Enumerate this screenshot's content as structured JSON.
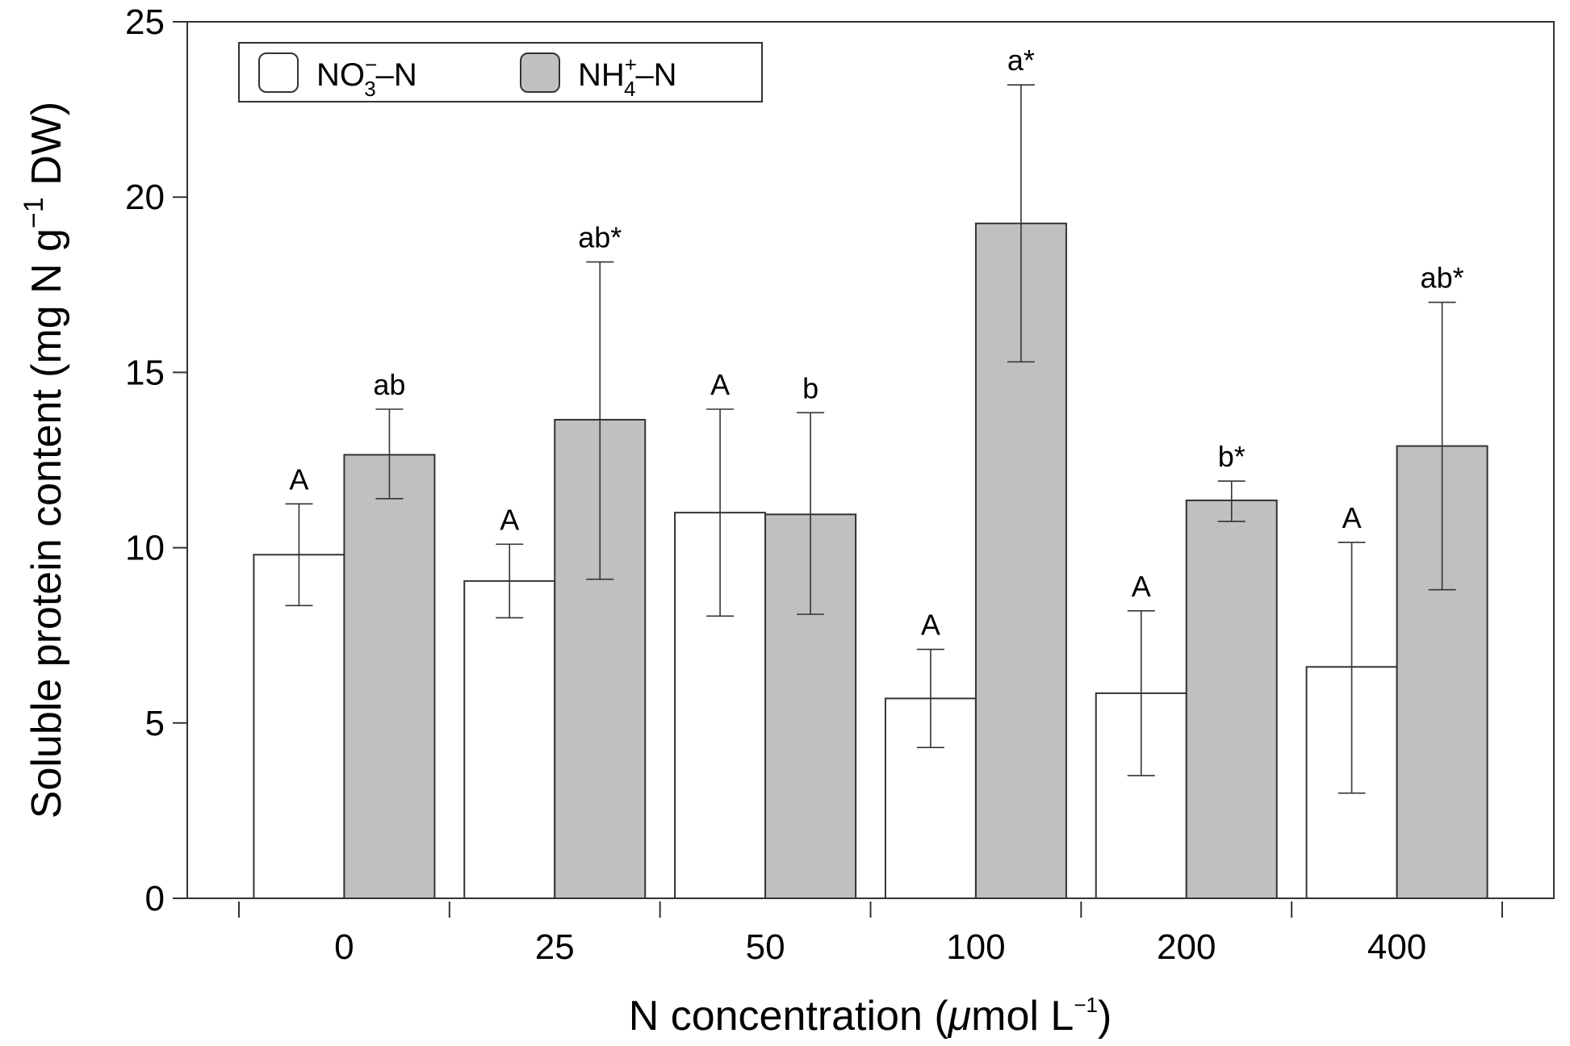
{
  "chart_data": {
    "type": "bar",
    "title": "",
    "xlabel": "N concentration (μmol L⁻¹)",
    "xlabel_parts": {
      "main": "N concentration (",
      "mu": "μ",
      "unit": "mol L",
      "exp": "−1",
      "close": ")"
    },
    "ylabel": "Soluble protein content (mg N g⁻¹ DW)",
    "ylabel_parts": {
      "main": "Soluble protein content (mg N g",
      "exp": "−1",
      "close": " DW)"
    },
    "ylim": [
      0,
      25
    ],
    "yticks": [
      0,
      5,
      10,
      15,
      20,
      25
    ],
    "ytick_labels": [
      "0",
      "5",
      "10",
      "15",
      "20",
      "25"
    ],
    "categories": [
      "0",
      "25",
      "50",
      "100",
      "200",
      "400"
    ],
    "legend_position": "top-left",
    "series": [
      {
        "name": "NO3−–N",
        "legend": {
          "base": "NO",
          "sup": "−",
          "sub": "3",
          "rest": "–N"
        },
        "color": "#ffffff",
        "values": [
          9.8,
          9.05,
          11.0,
          5.7,
          5.85,
          6.6
        ],
        "err_low": [
          8.35,
          8.0,
          8.05,
          4.3,
          3.5,
          3.0
        ],
        "err_high": [
          11.25,
          10.1,
          13.95,
          7.1,
          8.2,
          10.15
        ],
        "labels": [
          "A",
          "A",
          "A",
          "A",
          "A",
          "A"
        ]
      },
      {
        "name": "NH4+–N",
        "legend": {
          "base": "NH",
          "sup": "+",
          "sub": "4",
          "rest": "–N"
        },
        "color": "#c0c0c0",
        "values": [
          12.65,
          13.65,
          10.95,
          19.25,
          11.35,
          12.9
        ],
        "err_low": [
          11.4,
          9.1,
          8.1,
          15.3,
          10.75,
          8.8
        ],
        "err_high": [
          13.95,
          18.15,
          13.85,
          23.2,
          11.9,
          17.0
        ],
        "labels": [
          "ab",
          "ab*",
          "b",
          "a*",
          "b*",
          "ab*"
        ]
      }
    ]
  }
}
